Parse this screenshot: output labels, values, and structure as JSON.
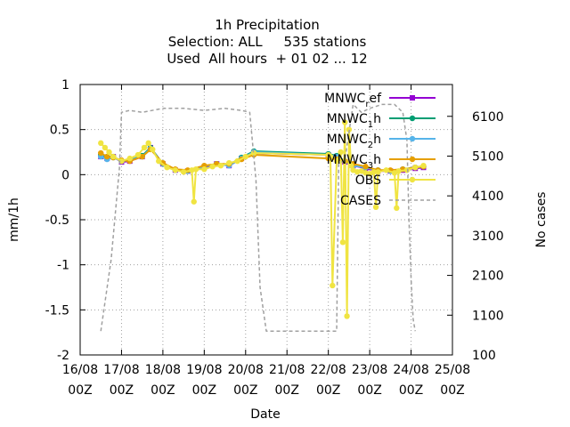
{
  "chart_data": {
    "type": "line",
    "title_lines": [
      "1h Precipitation",
      "Selection: ALL     535 stations",
      "Used  All hours  + 01 02 ... 12"
    ],
    "xlabel": "Date",
    "ylabel": "mm/1h",
    "y2label": "No cases",
    "ylim": [
      -2,
      1
    ],
    "y2lim": [
      100,
      6900
    ],
    "xlim": [
      0,
      9
    ],
    "yticks": [
      1,
      0.5,
      0,
      -0.5,
      -1,
      -1.5,
      -2
    ],
    "ytick_labels": [
      "1",
      "0.5",
      "0",
      "-0.5",
      "-1",
      "-1.5",
      "-2"
    ],
    "y2ticks": [
      6100,
      5100,
      4100,
      3100,
      2100,
      1100,
      100
    ],
    "y2tick_labels": [
      "6100",
      "5100",
      "4100",
      "3100",
      "2100",
      "1100",
      "100"
    ],
    "xticks": [
      0,
      1,
      2,
      3,
      4,
      5,
      6,
      7,
      8,
      9
    ],
    "xtick_labels": [
      [
        "16/08",
        "00Z"
      ],
      [
        "17/08",
        "00Z"
      ],
      [
        "18/08",
        "00Z"
      ],
      [
        "19/08",
        "00Z"
      ],
      [
        "20/08",
        "00Z"
      ],
      [
        "21/08",
        "00Z"
      ],
      [
        "22/08",
        "00Z"
      ],
      [
        "23/08",
        "00Z"
      ],
      [
        "24/08",
        "00Z"
      ],
      [
        "25/08",
        "00Z"
      ]
    ],
    "grid": true,
    "legend_position": "top-right",
    "series": [
      {
        "name": "MNWC_ref",
        "legend_base": "MNWC",
        "legend_sub": "r",
        "legend_tail": "ef",
        "color": "#9400d3",
        "axis": "y",
        "marker": "square",
        "x": [
          0.5,
          0.65,
          0.8,
          1.0,
          1.2,
          1.5,
          1.7,
          2.0,
          2.3,
          2.6,
          3.0,
          3.3,
          3.6,
          3.9,
          4.2,
          6.0,
          6.2,
          6.4,
          6.6,
          6.9,
          7.2,
          7.5,
          7.8,
          8.1,
          8.3
        ],
        "y": [
          0.2,
          0.18,
          0.2,
          0.14,
          0.15,
          0.2,
          0.3,
          0.12,
          0.05,
          0.04,
          0.08,
          0.12,
          0.1,
          0.18,
          0.24,
          0.22,
          0.2,
          0.14,
          0.1,
          0.07,
          0.04,
          0.04,
          0.05,
          0.07,
          0.08
        ]
      },
      {
        "name": "MNWC_1h",
        "legend_base": "MNWC",
        "legend_sub": "1",
        "legend_tail": "h",
        "color": "#009e73",
        "axis": "y",
        "marker": "circle",
        "x": [
          0.5,
          0.65,
          0.8,
          1.0,
          1.2,
          1.5,
          1.7,
          2.0,
          2.3,
          2.6,
          3.0,
          3.3,
          3.6,
          3.9,
          4.2,
          6.0,
          6.2,
          6.4,
          6.6,
          6.9,
          7.2,
          7.5,
          7.8,
          8.1,
          8.3
        ],
        "y": [
          0.22,
          0.2,
          0.2,
          0.15,
          0.16,
          0.21,
          0.3,
          0.12,
          0.05,
          0.04,
          0.09,
          0.12,
          0.11,
          0.19,
          0.26,
          0.23,
          0.21,
          0.15,
          0.11,
          0.08,
          0.05,
          0.04,
          0.06,
          0.08,
          0.09
        ]
      },
      {
        "name": "MNWC_2h",
        "legend_base": "MNWC",
        "legend_sub": "2",
        "legend_tail": "h",
        "color": "#56b4e9",
        "axis": "y",
        "marker": "circle",
        "x": [
          0.5,
          0.65,
          0.8,
          1.0,
          1.2,
          1.5,
          1.7,
          2.0,
          2.3,
          2.6,
          3.0,
          3.3,
          3.6,
          3.9,
          4.2,
          6.0,
          6.2,
          6.4,
          6.6,
          6.9,
          7.2,
          7.5,
          7.8,
          8.1,
          8.3
        ],
        "y": [
          0.2,
          0.17,
          0.19,
          0.15,
          0.16,
          0.2,
          0.29,
          0.12,
          0.05,
          0.04,
          0.09,
          0.12,
          0.1,
          0.18,
          0.25,
          0.22,
          0.2,
          0.15,
          0.1,
          0.08,
          0.05,
          0.04,
          0.06,
          0.08,
          0.09
        ]
      },
      {
        "name": "MNWC_3h",
        "legend_base": "MNWC",
        "legend_sub": "3",
        "legend_tail": "h",
        "color": "#e69f00",
        "axis": "y",
        "marker": "circle",
        "x": [
          0.5,
          0.65,
          0.8,
          1.0,
          1.2,
          1.5,
          1.7,
          2.0,
          2.3,
          2.6,
          3.0,
          3.3,
          3.6,
          3.9,
          4.2,
          6.0,
          6.2,
          6.4,
          6.6,
          6.9,
          7.2,
          7.5,
          7.8,
          8.1,
          8.3
        ],
        "y": [
          0.24,
          0.2,
          0.19,
          0.16,
          0.15,
          0.2,
          0.28,
          0.13,
          0.06,
          0.05,
          0.1,
          0.12,
          0.12,
          0.17,
          0.22,
          0.18,
          0.17,
          0.15,
          0.12,
          0.09,
          0.05,
          0.05,
          0.06,
          0.08,
          0.09
        ]
      },
      {
        "name": "OBS",
        "legend_base": "OBS",
        "legend_sub": "",
        "legend_tail": "",
        "color": "#f0e442",
        "axis": "y",
        "marker": "circle",
        "x": [
          0.5,
          0.6,
          0.7,
          0.8,
          1.0,
          1.2,
          1.4,
          1.55,
          1.65,
          1.75,
          1.9,
          2.1,
          2.3,
          2.5,
          2.7,
          2.75,
          2.8,
          3.0,
          3.2,
          3.4,
          3.6,
          3.8,
          4.0,
          4.2,
          6.0,
          6.05,
          6.1,
          6.2,
          6.3,
          6.35,
          6.4,
          6.45,
          6.5,
          6.55,
          6.6,
          6.7,
          6.8,
          6.9,
          7.0,
          7.1,
          7.15,
          7.2,
          7.4,
          7.6,
          7.65,
          7.7,
          7.9,
          8.1,
          8.3
        ],
        "y": [
          0.35,
          0.3,
          0.25,
          0.2,
          0.15,
          0.18,
          0.22,
          0.3,
          0.35,
          0.28,
          0.15,
          0.08,
          0.05,
          0.03,
          0.05,
          -0.3,
          0.06,
          0.06,
          0.09,
          0.1,
          0.13,
          0.15,
          0.2,
          0.24,
          0.22,
          0.2,
          -1.23,
          0.15,
          0.25,
          -0.75,
          0.58,
          -1.57,
          0.5,
          0.1,
          0.05,
          0.03,
          0.04,
          0.02,
          0.01,
          0.03,
          -0.36,
          0.03,
          0.05,
          0.02,
          -0.37,
          0.04,
          0.05,
          0.08,
          0.1
        ]
      },
      {
        "name": "CASES",
        "legend_base": "CASES",
        "legend_sub": "",
        "legend_tail": "",
        "color": "#a0a0a0",
        "axis": "y2",
        "marker": "none",
        "dashed": true,
        "x": [
          0.5,
          0.75,
          0.95,
          1.0,
          1.2,
          1.5,
          2.0,
          2.5,
          3.0,
          3.5,
          3.9,
          4.1,
          4.25,
          4.35,
          4.5,
          5.0,
          5.5,
          5.9,
          6.0,
          6.2,
          6.25,
          6.4,
          6.6,
          6.8,
          7.0,
          7.3,
          7.6,
          7.8,
          7.9,
          7.95,
          8.0,
          8.05,
          8.1
        ],
        "y": [
          700,
          2500,
          4800,
          6200,
          6250,
          6200,
          6300,
          6300,
          6250,
          6300,
          6250,
          6200,
          4500,
          1800,
          700,
          700,
          700,
          700,
          700,
          700,
          4900,
          5000,
          6400,
          6200,
          6300,
          6400,
          6400,
          6200,
          5500,
          3500,
          2000,
          1000,
          700
        ]
      }
    ]
  }
}
